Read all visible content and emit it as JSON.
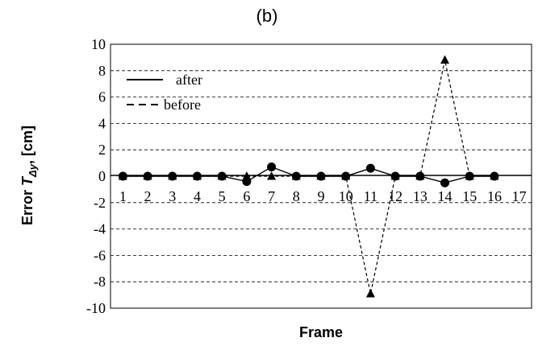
{
  "chart_data": {
    "type": "line",
    "title": "(b)",
    "xlabel": "Frame",
    "ylabel_prefix": "Error ",
    "ylabel_symbol": "T",
    "ylabel_subscript": "Δy",
    "ylabel_suffix": ", [cm]",
    "x_tick_labels": [
      "1",
      "2",
      "3",
      "4",
      "5",
      "6",
      "7",
      "8",
      "9",
      "10",
      "11",
      "12",
      "13",
      "14",
      "15",
      "16",
      "17"
    ],
    "y_tick_labels": [
      "10",
      "8",
      "6",
      "4",
      "2",
      "0",
      "-2",
      "-4",
      "-6",
      "-8",
      "-10"
    ],
    "ylim": [
      -10,
      10
    ],
    "grid": "horizontal dashed",
    "legend_position": "top-left",
    "series": [
      {
        "name": "after",
        "line_style": "solid",
        "marker": "circle",
        "x": [
          1,
          2,
          3,
          4,
          5,
          6,
          7,
          8,
          9,
          10,
          11,
          12,
          13,
          14,
          15,
          16
        ],
        "values": [
          0,
          0,
          0,
          0,
          0,
          -0.4,
          0.7,
          0,
          0,
          0,
          0.6,
          0,
          0,
          -0.5,
          0,
          0
        ]
      },
      {
        "name": "before",
        "line_style": "dashed",
        "marker": "triangle",
        "x": [
          1,
          2,
          3,
          4,
          5,
          6,
          7,
          8,
          9,
          10,
          11,
          12,
          13,
          14,
          15,
          16
        ],
        "values": [
          0,
          0,
          0,
          0,
          0,
          0,
          0,
          0,
          0,
          0,
          -8.9,
          0,
          0,
          8.8,
          0,
          0
        ]
      }
    ]
  }
}
